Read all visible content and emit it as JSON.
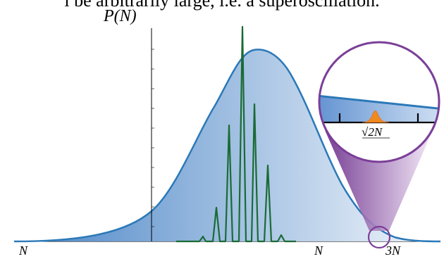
{
  "caption_fragment": "l be arbitrarily large, i.e. a superoscillation.",
  "y_axis_label": "P(N)",
  "x_tick_labels": [
    "N",
    "N",
    "3N"
  ],
  "inset_label": "√2N",
  "colors": {
    "envelope_line": "#2b79b8",
    "envelope_fill_dark": "#4d86c7",
    "envelope_fill_light": "#eef3fa",
    "spikes": "#1a6b35",
    "magnifier": "#7b3f98",
    "inset_peak": "#f08a1e"
  }
}
